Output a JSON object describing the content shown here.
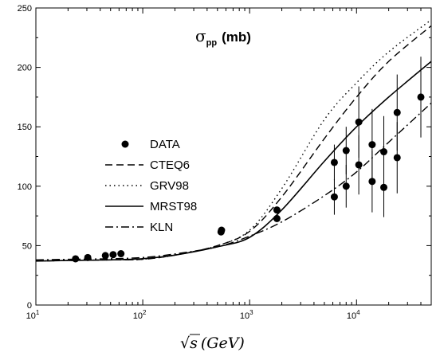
{
  "chart_data": {
    "type": "line",
    "title_symbol": "σ",
    "title_subscript": "pp",
    "title_unit": "(mb)",
    "xlabel_root": "√",
    "xlabel_var": "s",
    "xlabel_unit": "(GeV)",
    "xscale": "log",
    "xlim": [
      10,
      50000
    ],
    "ylim": [
      0,
      250
    ],
    "xticks": [
      10,
      100,
      1000,
      10000
    ],
    "xtick_base": "10",
    "xtick_exponents": [
      "1",
      "2",
      "3",
      "4"
    ],
    "yticks": [
      0,
      50,
      100,
      150,
      200,
      250
    ],
    "ytick_labels": [
      "0",
      "50",
      "100",
      "150",
      "200",
      "250"
    ],
    "legend_position": "middle-left",
    "series": [
      {
        "name": "CTEQ6",
        "style": "dashed",
        "color": "#000000",
        "x": [
          10,
          20,
          50,
          100,
          200,
          500,
          1000,
          2000,
          5000,
          10000,
          20000,
          50000
        ],
        "y": [
          37,
          37.5,
          38,
          38.5,
          42,
          50,
          62,
          91,
          140,
          175,
          205,
          235
        ]
      },
      {
        "name": "GRV98",
        "style": "dotted",
        "color": "#000000",
        "x": [
          10,
          20,
          50,
          100,
          200,
          500,
          1000,
          2000,
          5000,
          10000,
          20000,
          50000
        ],
        "y": [
          37,
          37.5,
          38,
          38.5,
          42,
          50,
          63,
          98,
          156,
          187,
          213,
          240
        ]
      },
      {
        "name": "MRST98",
        "style": "solid",
        "color": "#000000",
        "x": [
          10,
          20,
          50,
          100,
          200,
          500,
          1000,
          2000,
          5000,
          10000,
          20000,
          50000
        ],
        "y": [
          37,
          37.5,
          38,
          39,
          42,
          49,
          57,
          80,
          121,
          150,
          175,
          205
        ]
      },
      {
        "name": "KLN",
        "style": "dashdot",
        "color": "#000000",
        "x": [
          10,
          20,
          50,
          100,
          200,
          500,
          1000,
          2000,
          5000,
          10000,
          20000,
          50000
        ],
        "y": [
          38,
          38.5,
          39,
          40,
          43,
          49,
          58,
          70,
          92,
          112,
          137,
          170
        ]
      }
    ],
    "data_points": {
      "name": "DATA",
      "points": [
        {
          "x": 23.5,
          "y": 38.9,
          "err": 0.6
        },
        {
          "x": 30.6,
          "y": 40.0,
          "err": 0.6
        },
        {
          "x": 44.7,
          "y": 41.6,
          "err": 0.6
        },
        {
          "x": 52.8,
          "y": 42.4,
          "err": 0.6
        },
        {
          "x": 62.5,
          "y": 43.2,
          "err": 0.6
        },
        {
          "x": 540,
          "y": 61.5,
          "err": 1.5
        },
        {
          "x": 546,
          "y": 63.0,
          "err": 1.5
        },
        {
          "x": 1800,
          "y": 72.8,
          "err": 3.0
        },
        {
          "x": 1800,
          "y": 80.0,
          "err": 2.5
        },
        {
          "x": 6200,
          "y": 120,
          "err": 15
        },
        {
          "x": 6200,
          "y": 91,
          "err": 15
        },
        {
          "x": 8000,
          "y": 130,
          "err": 20
        },
        {
          "x": 8000,
          "y": 100,
          "err": 18
        },
        {
          "x": 10500,
          "y": 154,
          "err": 30
        },
        {
          "x": 10500,
          "y": 118,
          "err": 25
        },
        {
          "x": 14000,
          "y": 135,
          "err": 30
        },
        {
          "x": 14000,
          "y": 104,
          "err": 26
        },
        {
          "x": 18000,
          "y": 129,
          "err": 30
        },
        {
          "x": 18000,
          "y": 99,
          "err": 25
        },
        {
          "x": 24000,
          "y": 162,
          "err": 32
        },
        {
          "x": 24000,
          "y": 124,
          "err": 30
        },
        {
          "x": 40000,
          "y": 175,
          "err": 34
        }
      ]
    }
  }
}
